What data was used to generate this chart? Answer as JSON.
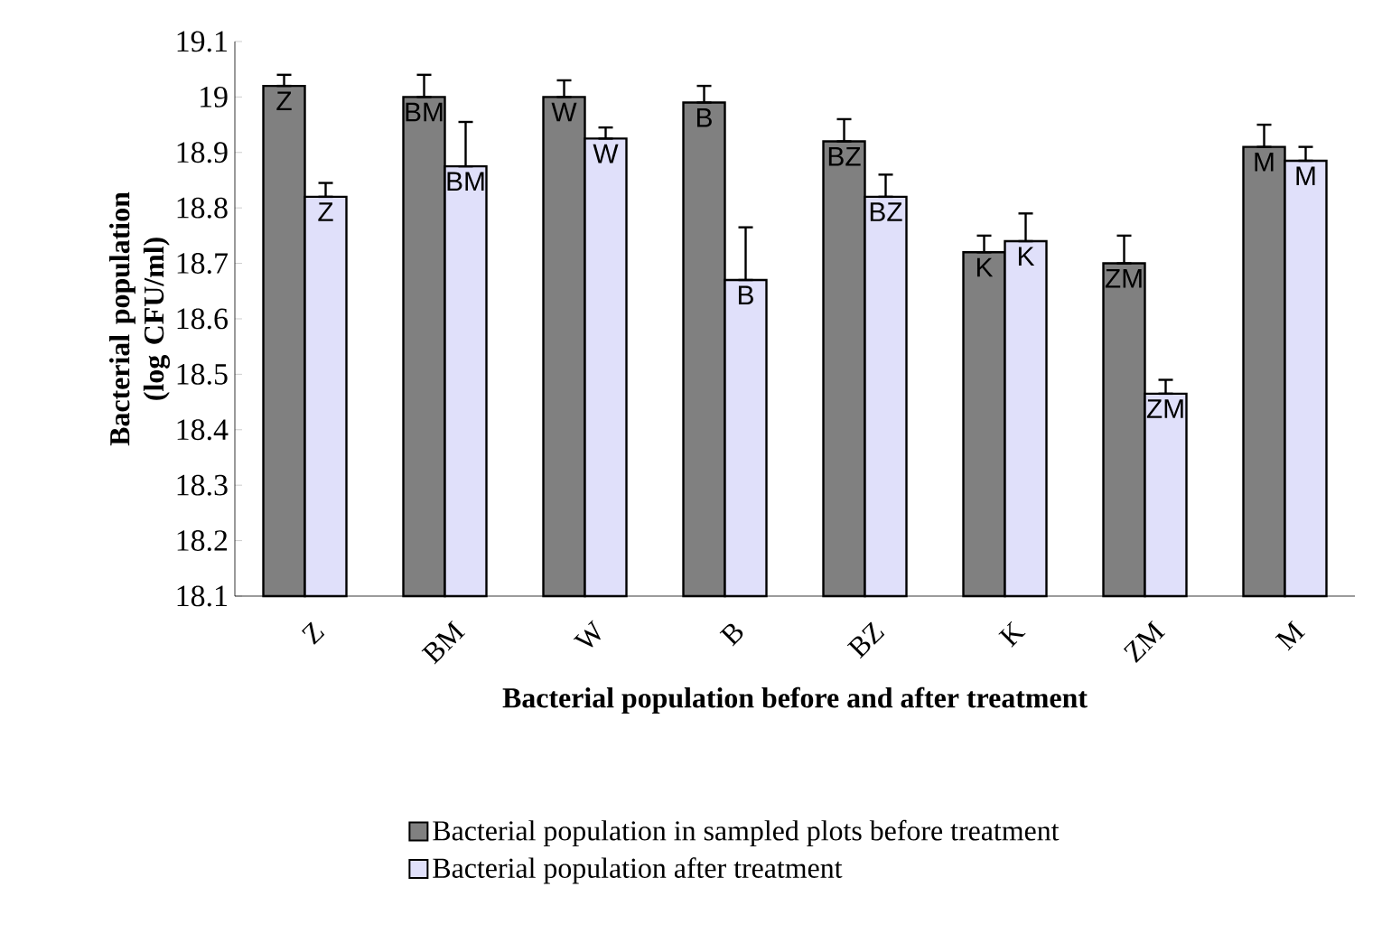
{
  "chart_data": {
    "type": "bar",
    "xlabel": "Bacterial population before and after treatment",
    "ylabel": "Bacterial population (log CFU/ml)",
    "categories": [
      "Z",
      "BM",
      "W",
      "B",
      "BZ",
      "K",
      "ZM",
      "M"
    ],
    "series": [
      {
        "name": "Bacterial population in sampled plots before treatment",
        "color": "#808080",
        "values": [
          19.02,
          19.0,
          19.0,
          18.99,
          18.92,
          18.72,
          18.7,
          18.91
        ],
        "errors": [
          [
            19.02,
            19.04
          ],
          [
            19.0,
            19.04
          ],
          [
            19.0,
            19.03
          ],
          [
            18.99,
            19.02
          ],
          [
            18.92,
            18.96
          ],
          [
            18.72,
            18.75
          ],
          [
            18.7,
            18.75
          ],
          [
            18.91,
            18.95
          ]
        ],
        "value_labels": [
          "Z",
          "BM",
          "W",
          "B",
          "BZ",
          "K",
          "ZM",
          "M"
        ]
      },
      {
        "name": "Bacterial population after  treatment",
        "color": "#e0e0fa",
        "values": [
          18.82,
          18.875,
          18.925,
          18.67,
          18.82,
          18.74,
          18.465,
          18.885
        ],
        "errors": [
          [
            18.82,
            18.845
          ],
          [
            18.875,
            18.955
          ],
          [
            18.925,
            18.945
          ],
          [
            18.67,
            18.765
          ],
          [
            18.82,
            18.86
          ],
          [
            18.74,
            18.79
          ],
          [
            18.465,
            18.49
          ],
          [
            18.885,
            18.91
          ]
        ],
        "value_labels": [
          "Z",
          "BM",
          "W",
          "B",
          "BZ",
          "K",
          "ZM",
          "M"
        ]
      }
    ],
    "ylim": [
      18.1,
      19.1
    ],
    "yticks": [
      18.1,
      18.2,
      18.3,
      18.4,
      18.5,
      18.6,
      18.7,
      18.8,
      18.9,
      19,
      19.1
    ],
    "grid": false,
    "legend": "bottom"
  }
}
